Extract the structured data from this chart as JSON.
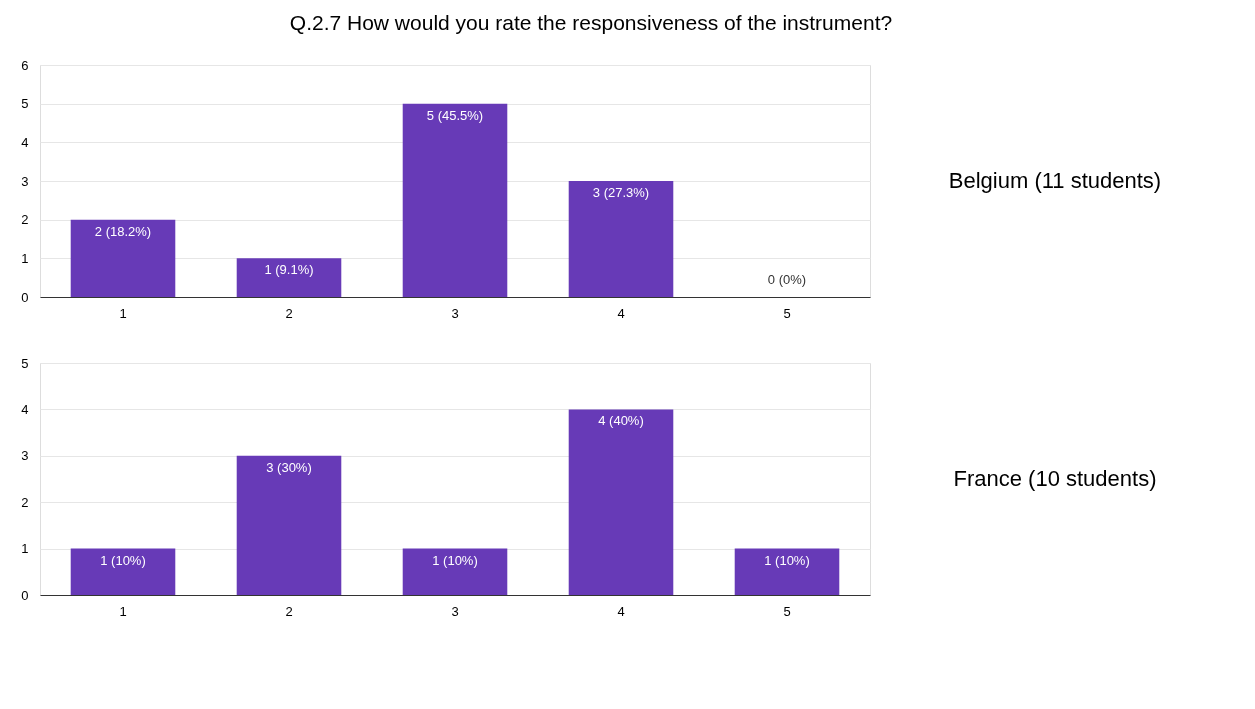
{
  "chart_data": [
    {
      "type": "bar",
      "title": "Q.2.7 How would you rate the responsiveness of the instrument?",
      "categories": [
        "1",
        "2",
        "3",
        "4",
        "5"
      ],
      "values": [
        2,
        1,
        5,
        3,
        0
      ],
      "value_labels": [
        "2 (18.2%)",
        "1 (9.1%)",
        "5 (45.5%)",
        "3 (27.3%)",
        "0 (0%)"
      ],
      "color": "#673ab7",
      "ylim": [
        0,
        6
      ],
      "yticks": [
        0,
        1,
        2,
        3,
        4,
        5,
        6
      ],
      "grid": "y",
      "annotations": [
        "Belgium (11 students)"
      ]
    },
    {
      "type": "bar",
      "categories": [
        "1",
        "2",
        "3",
        "4",
        "5"
      ],
      "values": [
        1,
        3,
        1,
        4,
        1
      ],
      "value_labels": [
        "1 (10%)",
        "3 (30%)",
        "1 (10%)",
        "4 (40%)",
        "1 (10%)"
      ],
      "color": "#673ab7",
      "ylim": [
        0,
        5
      ],
      "yticks": [
        0,
        1,
        2,
        3,
        4,
        5
      ],
      "grid": "y",
      "annotations": [
        "France (10 students)"
      ]
    }
  ]
}
